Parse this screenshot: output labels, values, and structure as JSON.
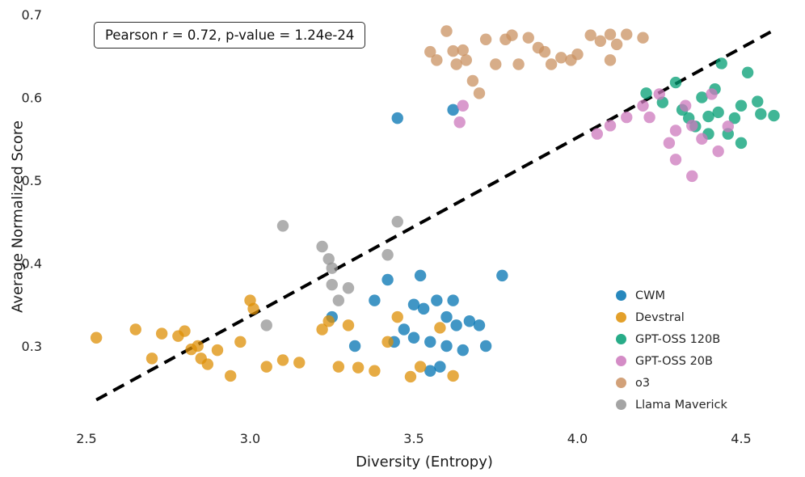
{
  "annotation": {
    "text": "Pearson r = 0.72, p-value = 1.24e-24"
  },
  "chart_data": {
    "type": "scatter",
    "title": "",
    "xlabel": "Diversity (Entropy)",
    "ylabel": "Average Normalized Score",
    "xlim": [
      2.39,
      4.67
    ],
    "ylim": [
      0.225,
      0.7
    ],
    "grid": false,
    "legend_position": "lower right inside axes",
    "annotation": "Pearson r = 0.72, p-value = 1.24e-24",
    "xticks": [
      {
        "value": 2.5,
        "label": "2.5"
      },
      {
        "value": 3.0,
        "label": "3.0"
      },
      {
        "value": 3.5,
        "label": "3.5"
      },
      {
        "value": 4.0,
        "label": "4.0"
      },
      {
        "value": 4.5,
        "label": "4.5"
      }
    ],
    "yticks": [
      {
        "value": 0.3,
        "label": "0.3"
      },
      {
        "value": 0.4,
        "label": "0.4"
      },
      {
        "value": 0.5,
        "label": "0.5"
      },
      {
        "value": 0.6,
        "label": "0.6"
      },
      {
        "value": 0.7,
        "label": "0.7"
      }
    ],
    "trendline": {
      "style": "dashed",
      "color": "#000000",
      "x1": 2.53,
      "y1": 0.235,
      "x2": 4.59,
      "y2": 0.679
    },
    "series": [
      {
        "name": "CWM",
        "color": "#0173b2",
        "points": [
          [
            3.45,
            0.575
          ],
          [
            3.62,
            0.585
          ],
          [
            3.25,
            0.335
          ],
          [
            3.32,
            0.3
          ],
          [
            3.38,
            0.355
          ],
          [
            3.42,
            0.38
          ],
          [
            3.44,
            0.305
          ],
          [
            3.47,
            0.32
          ],
          [
            3.5,
            0.35
          ],
          [
            3.5,
            0.31
          ],
          [
            3.52,
            0.385
          ],
          [
            3.53,
            0.345
          ],
          [
            3.55,
            0.305
          ],
          [
            3.55,
            0.27
          ],
          [
            3.57,
            0.355
          ],
          [
            3.58,
            0.275
          ],
          [
            3.6,
            0.335
          ],
          [
            3.6,
            0.3
          ],
          [
            3.62,
            0.355
          ],
          [
            3.63,
            0.325
          ],
          [
            3.65,
            0.295
          ],
          [
            3.67,
            0.33
          ],
          [
            3.7,
            0.325
          ],
          [
            3.72,
            0.3
          ],
          [
            3.77,
            0.385
          ]
        ]
      },
      {
        "name": "Devstral",
        "color": "#de8f05",
        "points": [
          [
            2.53,
            0.31
          ],
          [
            2.65,
            0.32
          ],
          [
            2.7,
            0.285
          ],
          [
            2.73,
            0.315
          ],
          [
            2.78,
            0.312
          ],
          [
            2.8,
            0.318
          ],
          [
            2.82,
            0.296
          ],
          [
            2.84,
            0.3
          ],
          [
            2.85,
            0.285
          ],
          [
            2.87,
            0.278
          ],
          [
            2.9,
            0.295
          ],
          [
            2.94,
            0.264
          ],
          [
            2.97,
            0.305
          ],
          [
            3.0,
            0.355
          ],
          [
            3.01,
            0.345
          ],
          [
            3.05,
            0.275
          ],
          [
            3.1,
            0.283
          ],
          [
            3.15,
            0.28
          ],
          [
            3.22,
            0.32
          ],
          [
            3.24,
            0.33
          ],
          [
            3.27,
            0.275
          ],
          [
            3.3,
            0.325
          ],
          [
            3.33,
            0.274
          ],
          [
            3.38,
            0.27
          ],
          [
            3.42,
            0.305
          ],
          [
            3.45,
            0.335
          ],
          [
            3.49,
            0.263
          ],
          [
            3.52,
            0.275
          ],
          [
            3.58,
            0.322
          ],
          [
            3.62,
            0.264
          ]
        ]
      },
      {
        "name": "GPT-OSS 120B",
        "color": "#029e73",
        "points": [
          [
            4.21,
            0.605
          ],
          [
            4.26,
            0.594
          ],
          [
            4.3,
            0.618
          ],
          [
            4.32,
            0.585
          ],
          [
            4.34,
            0.575
          ],
          [
            4.36,
            0.565
          ],
          [
            4.38,
            0.6
          ],
          [
            4.4,
            0.577
          ],
          [
            4.4,
            0.556
          ],
          [
            4.42,
            0.61
          ],
          [
            4.43,
            0.582
          ],
          [
            4.44,
            0.641
          ],
          [
            4.46,
            0.556
          ],
          [
            4.48,
            0.575
          ],
          [
            4.5,
            0.59
          ],
          [
            4.5,
            0.545
          ],
          [
            4.52,
            0.63
          ],
          [
            4.55,
            0.595
          ],
          [
            4.56,
            0.58
          ],
          [
            4.6,
            0.578
          ]
        ]
      },
      {
        "name": "GPT-OSS 20B",
        "color": "#cc78bc",
        "points": [
          [
            3.65,
            0.59
          ],
          [
            3.64,
            0.57
          ],
          [
            4.06,
            0.556
          ],
          [
            4.1,
            0.566
          ],
          [
            4.15,
            0.576
          ],
          [
            4.2,
            0.59
          ],
          [
            4.22,
            0.576
          ],
          [
            4.25,
            0.604
          ],
          [
            4.28,
            0.545
          ],
          [
            4.3,
            0.56
          ],
          [
            4.3,
            0.525
          ],
          [
            4.33,
            0.59
          ],
          [
            4.35,
            0.566
          ],
          [
            4.35,
            0.505
          ],
          [
            4.38,
            0.55
          ],
          [
            4.41,
            0.604
          ],
          [
            4.43,
            0.535
          ],
          [
            4.46,
            0.565
          ]
        ]
      },
      {
        "name": "o3",
        "color": "#ca9161",
        "points": [
          [
            3.55,
            0.655
          ],
          [
            3.57,
            0.645
          ],
          [
            3.6,
            0.68
          ],
          [
            3.62,
            0.656
          ],
          [
            3.63,
            0.64
          ],
          [
            3.65,
            0.657
          ],
          [
            3.66,
            0.645
          ],
          [
            3.68,
            0.62
          ],
          [
            3.7,
            0.605
          ],
          [
            3.72,
            0.67
          ],
          [
            3.75,
            0.64
          ],
          [
            3.78,
            0.67
          ],
          [
            3.8,
            0.675
          ],
          [
            3.82,
            0.64
          ],
          [
            3.85,
            0.672
          ],
          [
            3.88,
            0.66
          ],
          [
            3.9,
            0.655
          ],
          [
            3.92,
            0.64
          ],
          [
            3.95,
            0.648
          ],
          [
            3.98,
            0.645
          ],
          [
            4.0,
            0.652
          ],
          [
            4.04,
            0.675
          ],
          [
            4.07,
            0.668
          ],
          [
            4.1,
            0.645
          ],
          [
            4.1,
            0.676
          ],
          [
            4.12,
            0.664
          ],
          [
            4.15,
            0.676
          ],
          [
            4.2,
            0.672
          ]
        ]
      },
      {
        "name": "Llama Maverick",
        "color": "#949494",
        "points": [
          [
            3.05,
            0.325
          ],
          [
            3.1,
            0.445
          ],
          [
            3.22,
            0.42
          ],
          [
            3.24,
            0.405
          ],
          [
            3.25,
            0.394
          ],
          [
            3.25,
            0.374
          ],
          [
            3.27,
            0.355
          ],
          [
            3.3,
            0.37
          ],
          [
            3.42,
            0.41
          ],
          [
            3.45,
            0.45
          ]
        ]
      }
    ]
  }
}
